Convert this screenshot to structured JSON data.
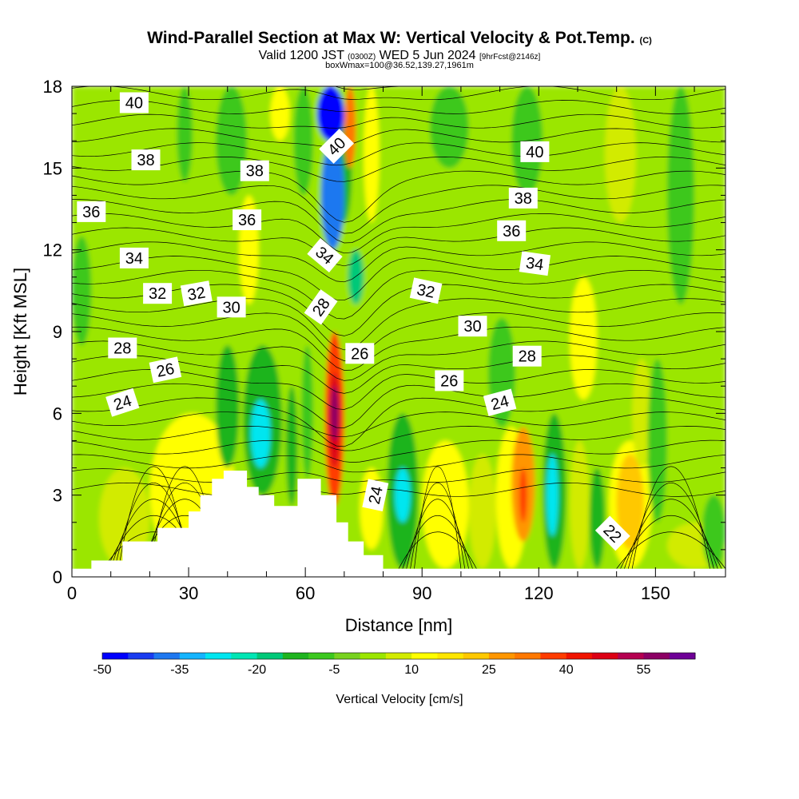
{
  "title": {
    "main": "Wind-Parallel Section at Max W: Vertical Velocity & Pot.Temp.",
    "copyright": "(C)",
    "valid_prefix": "Valid 1200 JST",
    "utc": "(0300Z)",
    "valid_date": "WED 5 Jun 2024",
    "forecast": "[9hrFcst@2146z]",
    "box_info": "boxWmax=100@36.52,139.27,1961m"
  },
  "chart_data": {
    "type": "contour",
    "xlabel": "Distance [nm]",
    "ylabel": "Height [Kft MSL]",
    "xlim": [
      0,
      168
    ],
    "ylim": [
      0,
      18
    ],
    "x_ticks": [
      0,
      30,
      60,
      90,
      120,
      150
    ],
    "y_ticks": [
      0,
      3,
      6,
      9,
      12,
      15,
      18
    ],
    "terrain_kft": [
      [
        0,
        0.3
      ],
      [
        5,
        0.3
      ],
      [
        5,
        0.6
      ],
      [
        13,
        0.6
      ],
      [
        13,
        1.3
      ],
      [
        22,
        1.3
      ],
      [
        22,
        1.8
      ],
      [
        30,
        1.8
      ],
      [
        30,
        2.4
      ],
      [
        33,
        2.4
      ],
      [
        33,
        3.0
      ],
      [
        36,
        3.0
      ],
      [
        36,
        3.6
      ],
      [
        39,
        3.6
      ],
      [
        39,
        3.9
      ],
      [
        45,
        3.9
      ],
      [
        45,
        3.3
      ],
      [
        48,
        3.3
      ],
      [
        48,
        3.0
      ],
      [
        52,
        3.0
      ],
      [
        52,
        2.6
      ],
      [
        58,
        2.6
      ],
      [
        58,
        3.6
      ],
      [
        64,
        3.6
      ],
      [
        64,
        3.0
      ],
      [
        68,
        3.0
      ],
      [
        68,
        2.0
      ],
      [
        71,
        2.0
      ],
      [
        71,
        1.3
      ],
      [
        75,
        1.3
      ],
      [
        75,
        0.8
      ],
      [
        80,
        0.8
      ],
      [
        80,
        0.3
      ],
      [
        168,
        0.3
      ]
    ],
    "colorbar": {
      "label": "Vertical Velocity [cm/s]",
      "tick_labels": [
        "-50",
        "-35",
        "-20",
        "-5",
        "10",
        "25",
        "40",
        "55"
      ],
      "levels": [
        -50,
        -45,
        -40,
        -35,
        -30,
        -25,
        -20,
        -15,
        -10,
        -5,
        0,
        5,
        10,
        15,
        20,
        25,
        30,
        35,
        40,
        45,
        50,
        55,
        60
      ],
      "colors": [
        "#0000ff",
        "#1a3cf0",
        "#1e78f0",
        "#14b4ff",
        "#00e6f0",
        "#00e6b4",
        "#00c878",
        "#1eb41e",
        "#3cc81e",
        "#78d21e",
        "#9be600",
        "#d2eb00",
        "#ffff00",
        "#ffe600",
        "#ffc800",
        "#ff9600",
        "#ff7800",
        "#ff3c00",
        "#f01400",
        "#dc0014",
        "#b40050",
        "#8c0064",
        "#6e0096"
      ]
    },
    "vertical_velocity_cells": [
      {
        "x": [
          0,
          168
        ],
        "y": [
          0,
          18
        ],
        "w": 2
      },
      {
        "x": [
          0,
          5
        ],
        "y": [
          8.5,
          12.5
        ],
        "w": -6
      },
      {
        "x": [
          27,
          31
        ],
        "y": [
          14.5,
          18
        ],
        "w": -6
      },
      {
        "x": [
          37,
          45
        ],
        "y": [
          14,
          18
        ],
        "w": -9
      },
      {
        "x": [
          57,
          62
        ],
        "y": [
          14,
          18
        ],
        "w": -6
      },
      {
        "x": [
          43,
          48
        ],
        "y": [
          10,
          14
        ],
        "w": 12
      },
      {
        "x": [
          51,
          56
        ],
        "y": [
          16,
          18
        ],
        "w": 12
      },
      {
        "x": [
          78,
          87
        ],
        "y": [
          14,
          18
        ],
        "w": 4
      },
      {
        "x": [
          92,
          102
        ],
        "y": [
          15,
          18
        ],
        "w": -6
      },
      {
        "x": [
          113,
          121
        ],
        "y": [
          14,
          18
        ],
        "w": -6
      },
      {
        "x": [
          127,
          133
        ],
        "y": [
          13,
          18
        ],
        "w": 3
      },
      {
        "x": [
          137,
          145
        ],
        "y": [
          13,
          18
        ],
        "w": 7
      },
      {
        "x": [
          153,
          160
        ],
        "y": [
          10,
          18
        ],
        "w": -6
      },
      {
        "x": [
          107,
          114
        ],
        "y": [
          5.5,
          9.5
        ],
        "w": -6
      },
      {
        "x": [
          128,
          135
        ],
        "y": [
          6.5,
          11
        ],
        "w": 11
      },
      {
        "x": [
          20,
          42
        ],
        "y": [
          0.3,
          6
        ],
        "w": 12
      },
      {
        "x": [
          7,
          20
        ],
        "y": [
          0.3,
          4
        ],
        "w": 8
      },
      {
        "x": [
          37,
          43
        ],
        "y": [
          4,
          8.5
        ],
        "w": -12
      },
      {
        "x": [
          44,
          54
        ],
        "y": [
          3,
          8.5
        ],
        "w": -12
      },
      {
        "x": [
          46,
          51
        ],
        "y": [
          4,
          6.5
        ],
        "w": -28
      },
      {
        "x": [
          55,
          58
        ],
        "y": [
          2.6,
          7
        ],
        "w": -12
      },
      {
        "x": [
          59,
          62
        ],
        "y": [
          3.6,
          8.5
        ],
        "w": -7
      },
      {
        "x": [
          74,
          80
        ],
        "y": [
          1,
          4
        ],
        "w": 12
      },
      {
        "x": [
          81,
          89
        ],
        "y": [
          0.3,
          6
        ],
        "w": -12
      },
      {
        "x": [
          83,
          87
        ],
        "y": [
          2,
          4
        ],
        "w": -28
      },
      {
        "x": [
          90,
          102
        ],
        "y": [
          0.3,
          5
        ],
        "w": 12
      },
      {
        "x": [
          102,
          109
        ],
        "y": [
          0.3,
          4.5
        ],
        "w": 8
      },
      {
        "x": [
          109,
          117
        ],
        "y": [
          0.3,
          5.5
        ],
        "w": 12
      },
      {
        "x": [
          113,
          119
        ],
        "y": [
          1.3,
          5.5
        ],
        "w": 28
      },
      {
        "x": [
          115,
          117
        ],
        "y": [
          2,
          4
        ],
        "w": 38
      },
      {
        "x": [
          121,
          127
        ],
        "y": [
          0.3,
          6
        ],
        "w": -12
      },
      {
        "x": [
          122,
          125
        ],
        "y": [
          1.5,
          4.5
        ],
        "w": -28
      },
      {
        "x": [
          128,
          133
        ],
        "y": [
          0.3,
          5
        ],
        "w": 8
      },
      {
        "x": [
          133,
          137
        ],
        "y": [
          0.3,
          4
        ],
        "w": -12
      },
      {
        "x": [
          138,
          149
        ],
        "y": [
          0.3,
          5
        ],
        "w": 12
      },
      {
        "x": [
          140,
          147
        ],
        "y": [
          1,
          4.5
        ],
        "w": 22
      },
      {
        "x": [
          144,
          149
        ],
        "y": [
          4,
          8
        ],
        "w": 8
      },
      {
        "x": [
          148,
          153
        ],
        "y": [
          2,
          8
        ],
        "w": -7
      },
      {
        "x": [
          153,
          168
        ],
        "y": [
          0.3,
          2
        ],
        "w": 5
      },
      {
        "x": [
          162,
          168
        ],
        "y": [
          0.3,
          3
        ],
        "w": -6
      },
      {
        "x": [
          68,
          72
        ],
        "y": [
          13,
          17
        ],
        "w": -12
      },
      {
        "x": [
          75,
          79
        ],
        "y": [
          13,
          18
        ],
        "w": 12
      },
      {
        "x": [
          71,
          75
        ],
        "y": [
          10,
          12
        ],
        "w": -20
      },
      {
        "x": [
          63,
          70
        ],
        "y": [
          16,
          18
        ],
        "w": -50
      },
      {
        "x": [
          64,
          70
        ],
        "y": [
          12,
          16
        ],
        "w": -40
      },
      {
        "x": [
          70,
          73
        ],
        "y": [
          15,
          18
        ],
        "w": 32
      },
      {
        "x": [
          65,
          70
        ],
        "y": [
          2.6,
          9
        ],
        "w": 36
      },
      {
        "x": [
          66,
          69
        ],
        "y": [
          4,
          7.5
        ],
        "w": 48
      },
      {
        "x": [
          66.5,
          68.5
        ],
        "y": [
          5,
          7
        ],
        "w": 58
      }
    ],
    "potential_temperature_labels": [
      {
        "value": "40",
        "x": 16,
        "y": 17.4,
        "angle": 0
      },
      {
        "value": "38",
        "x": 19,
        "y": 15.3,
        "angle": 0
      },
      {
        "value": "36",
        "x": 5,
        "y": 13.4,
        "angle": 0
      },
      {
        "value": "34",
        "x": 16,
        "y": 11.7,
        "angle": 0
      },
      {
        "value": "32",
        "x": 22,
        "y": 10.4,
        "angle": 0
      },
      {
        "value": "32",
        "x": 32,
        "y": 10.4,
        "angle": -10
      },
      {
        "value": "30",
        "x": 41,
        "y": 9.9,
        "angle": 0
      },
      {
        "value": "28",
        "x": 13,
        "y": 8.4,
        "angle": 0
      },
      {
        "value": "26",
        "x": 24,
        "y": 7.6,
        "angle": -12
      },
      {
        "value": "24",
        "x": 13,
        "y": 6.4,
        "angle": -18
      },
      {
        "value": "38",
        "x": 47,
        "y": 14.9,
        "angle": 0
      },
      {
        "value": "36",
        "x": 45,
        "y": 13.1,
        "angle": 0
      },
      {
        "value": "34",
        "x": 65,
        "y": 11.8,
        "angle": 40
      },
      {
        "value": "28",
        "x": 64,
        "y": 9.9,
        "angle": -55
      },
      {
        "value": "40",
        "x": 68,
        "y": 15.8,
        "angle": -45
      },
      {
        "value": "26",
        "x": 74,
        "y": 8.2,
        "angle": 0
      },
      {
        "value": "32",
        "x": 91,
        "y": 10.5,
        "angle": 12
      },
      {
        "value": "30",
        "x": 103,
        "y": 9.2,
        "angle": 0
      },
      {
        "value": "26",
        "x": 97,
        "y": 7.2,
        "angle": 0
      },
      {
        "value": "24",
        "x": 110,
        "y": 6.4,
        "angle": -15
      },
      {
        "value": "28",
        "x": 117,
        "y": 8.1,
        "angle": 0
      },
      {
        "value": "40",
        "x": 119,
        "y": 15.6,
        "angle": 0
      },
      {
        "value": "38",
        "x": 116,
        "y": 13.9,
        "angle": 0
      },
      {
        "value": "36",
        "x": 113,
        "y": 12.7,
        "angle": 0
      },
      {
        "value": "34",
        "x": 119,
        "y": 11.5,
        "angle": 8
      },
      {
        "value": "24",
        "x": 78,
        "y": 3.0,
        "angle": -78
      },
      {
        "value": "22",
        "x": 139,
        "y": 1.6,
        "angle": 45
      }
    ]
  }
}
